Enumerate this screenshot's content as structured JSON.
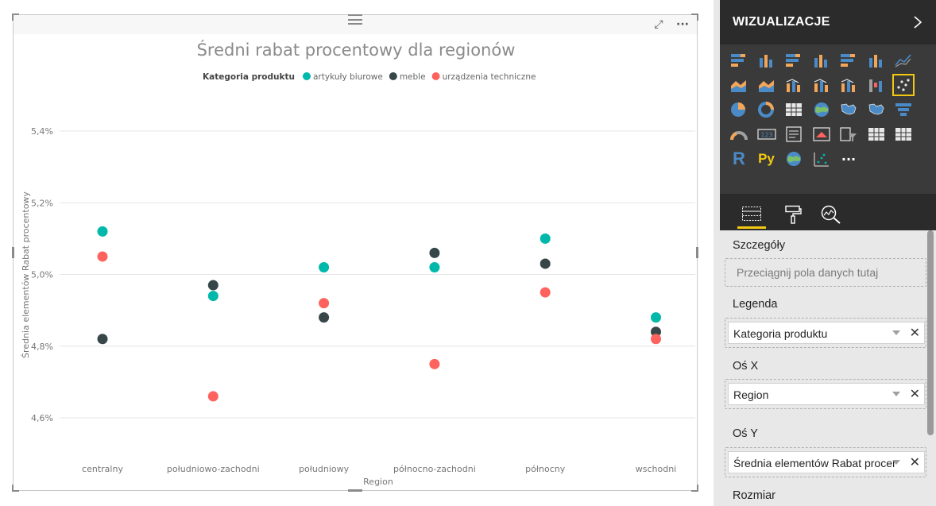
{
  "visual": {
    "focus_mode_label": "⤢",
    "more_options_label": "···"
  },
  "chart_data": {
    "type": "scatter",
    "title": "Średni rabat procentowy dla regionów",
    "legend_title": "Kategoria produktu",
    "legend_position": "top-center",
    "xlabel": "Region",
    "ylabel": "Średnia elementów Rabat procentowy",
    "categories": [
      "centralny",
      "południowo-zachodni",
      "południowy",
      "północno-zachodni",
      "północny",
      "wschodni"
    ],
    "yticks": [
      "5,4%",
      "5,2%",
      "5,0%",
      "4,8%",
      "4,6%"
    ],
    "ytick_values": [
      5.4,
      5.2,
      5.0,
      4.8,
      4.6
    ],
    "ylim": [
      4.52,
      5.55
    ],
    "grid": true,
    "series": [
      {
        "name": "artykuły biurowe",
        "color": "#01B8AA",
        "values": [
          5.12,
          4.94,
          5.02,
          5.02,
          5.1,
          4.88
        ]
      },
      {
        "name": "meble",
        "color": "#374649",
        "values": [
          4.82,
          4.97,
          4.88,
          5.06,
          5.03,
          4.84
        ]
      },
      {
        "name": "urządzenia techniczne",
        "color": "#FD625E",
        "values": [
          5.05,
          4.66,
          4.92,
          4.75,
          4.95,
          4.82
        ]
      }
    ]
  },
  "panel": {
    "title": "WIZUALIZACJE",
    "chevron_icon": "chevron-right-icon",
    "visual_icons": [
      "stacked-bar-chart-icon",
      "stacked-column-chart-icon",
      "clustered-bar-chart-icon",
      "clustered-column-chart-icon",
      "100-stacked-bar-chart-icon",
      "100-stacked-column-chart-icon",
      "line-chart-icon",
      "area-chart-icon",
      "stacked-area-chart-icon",
      "line-and-stacked-column-chart-icon",
      "line-and-clustered-column-chart-icon",
      "ribbon-chart-icon",
      "waterfall-chart-icon",
      "scatter-chart-icon",
      "pie-chart-icon",
      "donut-chart-icon",
      "treemap-icon",
      "map-icon",
      "filled-map-icon",
      "shape-map-icon",
      "funnel-icon",
      "gauge-icon",
      "card-icon",
      "multi-row-card-icon",
      "kpi-icon",
      "slicer-icon",
      "table-icon",
      "matrix-icon",
      "r-visual-icon",
      "python-visual-icon",
      "arcgis-map-icon",
      "key-influencers-icon",
      "more-visuals-icon"
    ],
    "r_label": "R",
    "py_label": "Py",
    "more_label": "···",
    "accent": "#F2C811",
    "tabs": [
      "fields-tab-icon",
      "format-paint-roller-icon",
      "analytics-magnifier-icon"
    ],
    "sections": {
      "details_label": "Szczegóły",
      "details_placeholder": "Przeciągnij pola danych tutaj",
      "legend_label": "Legenda",
      "legend_field": "Kategoria produktu",
      "xaxis_label": "Oś X",
      "xaxis_field": "Region",
      "yaxis_label": "Oś Y",
      "yaxis_field": "Średnia elementów Rabat procentowy",
      "size_label": "Rozmiar"
    },
    "remove_glyph": "✕"
  }
}
